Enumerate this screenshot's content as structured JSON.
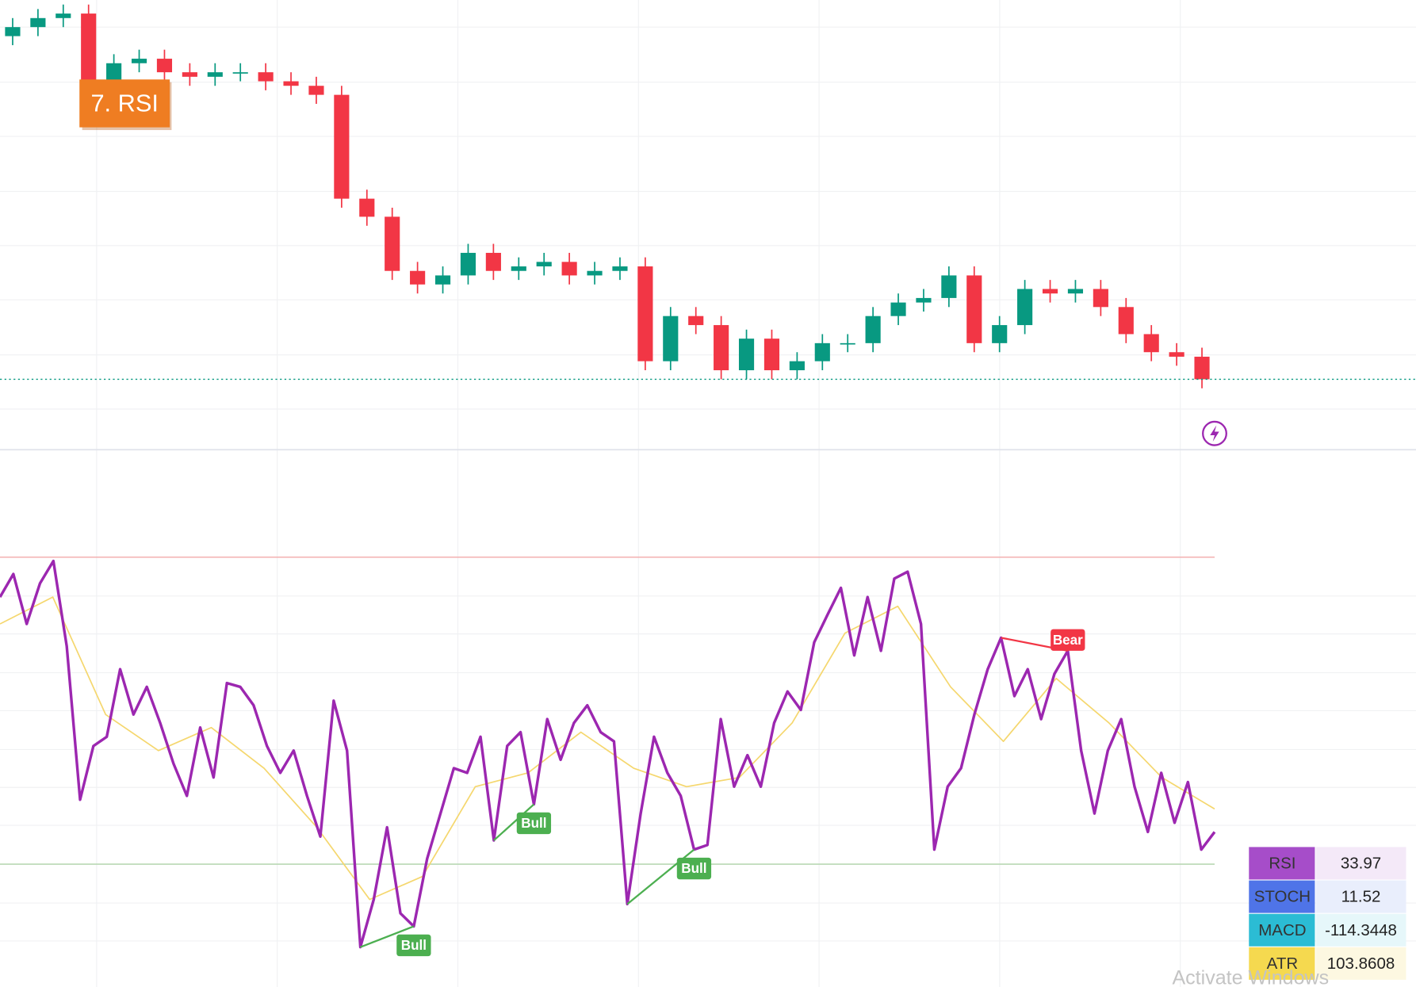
{
  "label": "7. RSI",
  "watermark": "Activate Windows",
  "chart_data": [
    {
      "type": "candlestick",
      "ylim": [
        0,
        100
      ],
      "up_color": "#089981",
      "down_color": "#f23645",
      "last_line_color": "#089981",
      "open": [
        92,
        94,
        96,
        97,
        80,
        86,
        87,
        84,
        83,
        84,
        84,
        82,
        81,
        79,
        56,
        52,
        40,
        37,
        39,
        44,
        40,
        41,
        42,
        39,
        40,
        41,
        20,
        30,
        28,
        18,
        25,
        18,
        20,
        24,
        24,
        30,
        33,
        34,
        39,
        24,
        28,
        36,
        35,
        36,
        32,
        26,
        22,
        21
      ],
      "high": [
        96,
        98,
        99,
        99,
        88,
        89,
        89,
        86,
        86,
        86,
        86,
        84,
        83,
        81,
        58,
        54,
        42,
        41,
        46,
        46,
        43,
        44,
        44,
        42,
        43,
        43,
        32,
        32,
        30,
        27,
        27,
        22,
        26,
        26,
        32,
        35,
        36,
        41,
        41,
        30,
        38,
        38,
        38,
        38,
        34,
        28,
        24,
        23
      ],
      "low": [
        90,
        92,
        94,
        78,
        78,
        84,
        82,
        81,
        81,
        82,
        80,
        79,
        77,
        54,
        50,
        38,
        35,
        35,
        37,
        38,
        38,
        39,
        37,
        37,
        38,
        18,
        18,
        26,
        16,
        16,
        16,
        16,
        18,
        22,
        22,
        28,
        31,
        32,
        22,
        22,
        26,
        33,
        33,
        30,
        24,
        20,
        19,
        14
      ],
      "close": [
        94,
        96,
        97,
        80,
        86,
        87,
        84,
        83,
        84,
        84,
        82,
        81,
        79,
        56,
        52,
        40,
        37,
        39,
        44,
        40,
        41,
        42,
        39,
        40,
        41,
        20,
        30,
        28,
        18,
        25,
        18,
        20,
        24,
        24,
        30,
        33,
        34,
        39,
        24,
        28,
        36,
        35,
        36,
        32,
        26,
        22,
        21,
        16
      ]
    },
    {
      "type": "line",
      "ylim": [
        14,
        84
      ],
      "levels": [
        {
          "value": 70,
          "color": "#f4b6b6"
        },
        {
          "value": 30,
          "color": "#b9d8b4"
        }
      ],
      "series": [
        {
          "name": "RSI",
          "color": "#9c27b0",
          "values": [
            64.8,
            67.8,
            61.3,
            66.6,
            69.5,
            58.4,
            38.4,
            45.4,
            46.6,
            55.4,
            49.5,
            53.1,
            48.4,
            43.1,
            38.9,
            47.8,
            41.3,
            53.6,
            53.1,
            50.7,
            45.4,
            41.9,
            44.8,
            38.9,
            33.6,
            51.3,
            44.8,
            19.2,
            25.4,
            34.8,
            23.6,
            21.9,
            30.7,
            36.6,
            42.5,
            41.9,
            46.6,
            33.1,
            45.4,
            47.2,
            37.8,
            48.9,
            43.6,
            48.4,
            50.7,
            47.2,
            46.0,
            24.8,
            36.6,
            46.6,
            41.9,
            38.9,
            31.9,
            32.5,
            48.9,
            40.1,
            44.2,
            40.1,
            48.4,
            52.5,
            50.1,
            58.9,
            62.5,
            66.0,
            57.2,
            64.8,
            57.8,
            67.2,
            68.1,
            61.3,
            31.9,
            40.1,
            42.5,
            49.5,
            55.4,
            59.5,
            51.9,
            55.4,
            48.9,
            54.8,
            57.8,
            44.8,
            36.6,
            44.8,
            48.9,
            40.1,
            34.2,
            41.9,
            35.4,
            40.7,
            31.9,
            34.2
          ]
        },
        {
          "name": "RSI MA",
          "color": "#f5d76e",
          "values": [
            61.3,
            64.8,
            49.5,
            44.8,
            47.8,
            42.5,
            34.8,
            25.4,
            28.4,
            40.1,
            41.9,
            47.2,
            42.5,
            40.1,
            41.3,
            48.4,
            60.1,
            63.6,
            53.1,
            46.0,
            54.2,
            48.4,
            41.3,
            37.2
          ]
        }
      ],
      "annotations": [
        {
          "label": "Bull",
          "color": "#4caf50",
          "points": [
            [
              27,
              19.2
            ],
            [
              31,
              21.9
            ]
          ]
        },
        {
          "label": "Bull",
          "color": "#4caf50",
          "points": [
            [
              37,
              33.1
            ],
            [
              40,
              37.8
            ]
          ]
        },
        {
          "label": "Bull",
          "color": "#4caf50",
          "points": [
            [
              47,
              24.8
            ],
            [
              52,
              31.9
            ]
          ]
        },
        {
          "label": "Bear",
          "color": "#f23645",
          "points": [
            [
              75,
              59.5
            ],
            [
              80,
              57.8
            ]
          ]
        }
      ]
    }
  ],
  "indicator_table": {
    "rows": [
      {
        "name": "RSI",
        "value": "33.97",
        "color": "#a64dc9",
        "tint": "#f4e9f8"
      },
      {
        "name": "STOCH",
        "value": "11.52",
        "color": "#4f74e8",
        "tint": "#e9eefc"
      },
      {
        "name": "MACD",
        "value": "-114.3448",
        "color": "#2bbcd4",
        "tint": "#e6f7fa"
      },
      {
        "name": "ATR",
        "value": "103.8608",
        "color": "#f5d94f",
        "tint": "#fdf8e1"
      }
    ]
  }
}
